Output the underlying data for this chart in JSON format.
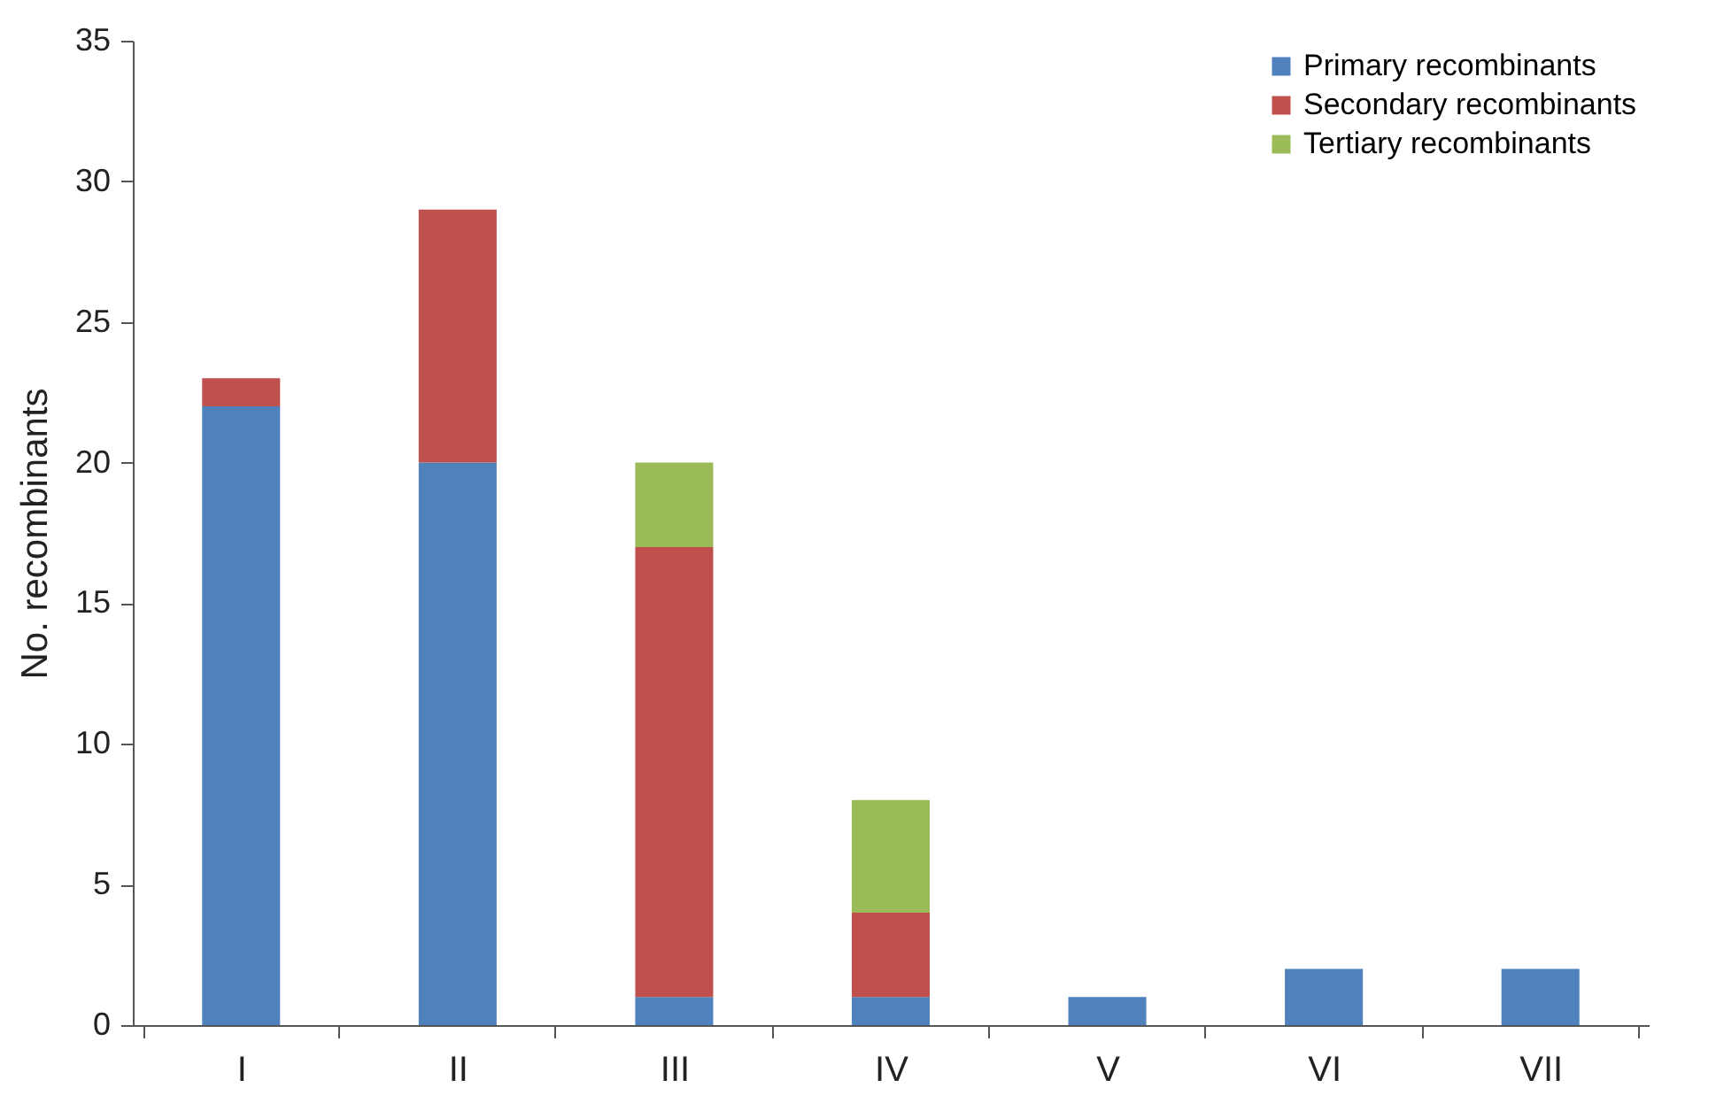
{
  "chart_data": {
    "type": "bar",
    "ylabel": "No. recombinants",
    "categories": [
      "I",
      "II",
      "III",
      "IV",
      "V",
      "VI",
      "VII"
    ],
    "series": [
      {
        "name": "Primary recombinants",
        "color": "#4f81bd",
        "values": [
          22,
          20,
          1,
          1,
          1,
          2,
          2
        ]
      },
      {
        "name": "Secondary recombinants",
        "color": "#c0504d",
        "values": [
          1,
          9,
          16,
          3,
          null,
          null,
          null
        ]
      },
      {
        "name": "Tertiary recombinants",
        "color": "#9bbb59",
        "values": [
          null,
          null,
          3,
          4,
          null,
          null,
          null
        ]
      }
    ],
    "stacked": true,
    "ylim": [
      0,
      35
    ],
    "yticks": [
      0,
      5,
      10,
      15,
      20,
      25,
      30,
      35
    ],
    "grid": false,
    "legend": "top right"
  }
}
